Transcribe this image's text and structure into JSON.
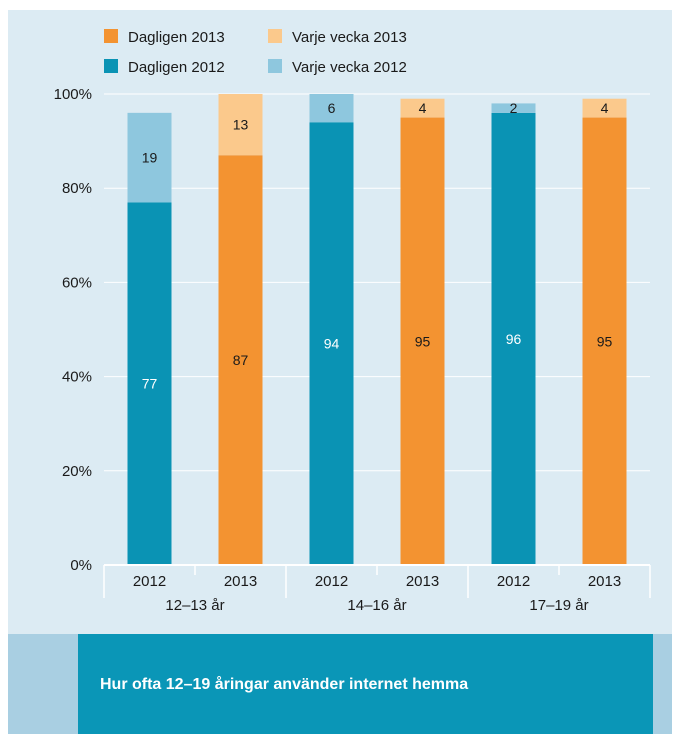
{
  "chart_data": {
    "type": "bar",
    "stacked": true,
    "title": "Hur ofta 12–19 åringar använder internet hemma",
    "groups": [
      "12–13 år",
      "14–16 år",
      "17–19 år"
    ],
    "categories": [
      "2012",
      "2013",
      "2012",
      "2013",
      "2012",
      "2013"
    ],
    "group_of_category": [
      0,
      0,
      1,
      1,
      2,
      2
    ],
    "series": [
      {
        "name": "Dagligen 2013",
        "color": "#f39331",
        "values": [
          null,
          87,
          null,
          95,
          null,
          95
        ]
      },
      {
        "name": "Varje vecka 2013",
        "color": "#fbc98c",
        "values": [
          null,
          13,
          null,
          4,
          null,
          4
        ]
      },
      {
        "name": "Dagligen 2012",
        "color": "#0a93b4",
        "values": [
          77,
          null,
          94,
          null,
          96,
          null
        ]
      },
      {
        "name": "Varje vecka 2012",
        "color": "#8ec7de",
        "values": [
          19,
          null,
          6,
          null,
          2,
          null
        ]
      }
    ],
    "legend_order": [
      "Dagligen 2013",
      "Varje vecka 2013",
      "Dagligen 2012",
      "Varje vecka 2012"
    ],
    "legend_position": "top-left",
    "y_ticks": [
      "0%",
      "20%",
      "40%",
      "60%",
      "80%",
      "100%"
    ],
    "ylim": [
      0,
      100
    ],
    "grid": true
  }
}
